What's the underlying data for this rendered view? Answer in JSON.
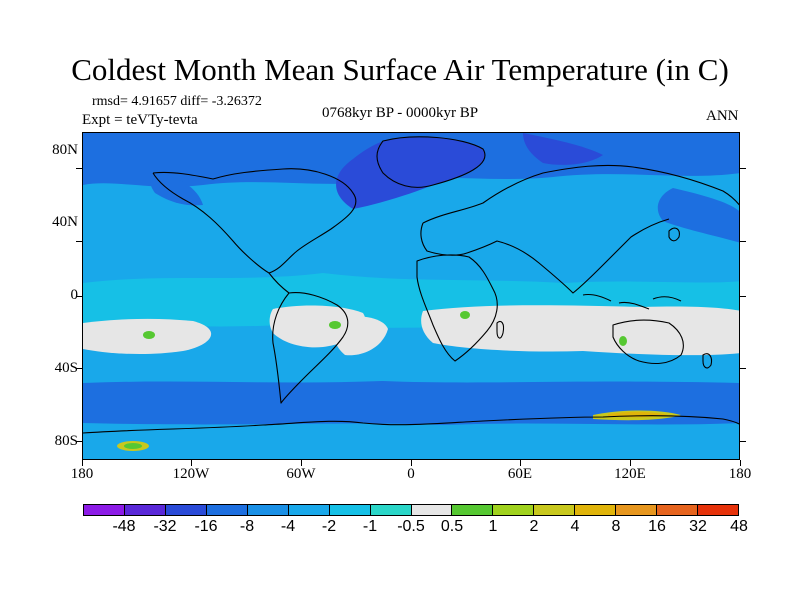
{
  "title": "Coldest Month Mean Surface Air Temperature (in C)",
  "stats": "rmsd= 4.91657 diff= -3.26372",
  "experiment": "Expt = teVTy-tevta",
  "period": "0768kyr BP - 0000kyr BP",
  "season": "ANN",
  "lat_labels": [
    "80N",
    "40N",
    "0",
    "40S",
    "80S"
  ],
  "lon_labels": [
    "180",
    "120W",
    "60W",
    "0",
    "60E",
    "120E",
    "180"
  ],
  "colorbar": {
    "colors": [
      "#8c1be6",
      "#5a28d8",
      "#2a4bd8",
      "#1d6fe0",
      "#1a90e6",
      "#19a8ea",
      "#16c0e6",
      "#2ad6c8",
      "#e6e6e6",
      "#56c832",
      "#a0d21e",
      "#c8c81e",
      "#e0b40a",
      "#e6961e",
      "#e6641e",
      "#e6320a"
    ],
    "labels": [
      "-48",
      "-32",
      "-16",
      "-8",
      "-4",
      "-2",
      "-1",
      "-0.5",
      "0.5",
      "1",
      "2",
      "4",
      "8",
      "16",
      "32",
      "48"
    ]
  },
  "map_colors": {
    "base": "#19a8ea",
    "deep_blue": "#1d6fe0",
    "darker_blue": "#2a4bd8",
    "turquoise": "#16c0e6",
    "neutral": "#e6e6e6",
    "green": "#56c832",
    "yellow": "#c8c81e",
    "orange": "#e0b40a"
  }
}
